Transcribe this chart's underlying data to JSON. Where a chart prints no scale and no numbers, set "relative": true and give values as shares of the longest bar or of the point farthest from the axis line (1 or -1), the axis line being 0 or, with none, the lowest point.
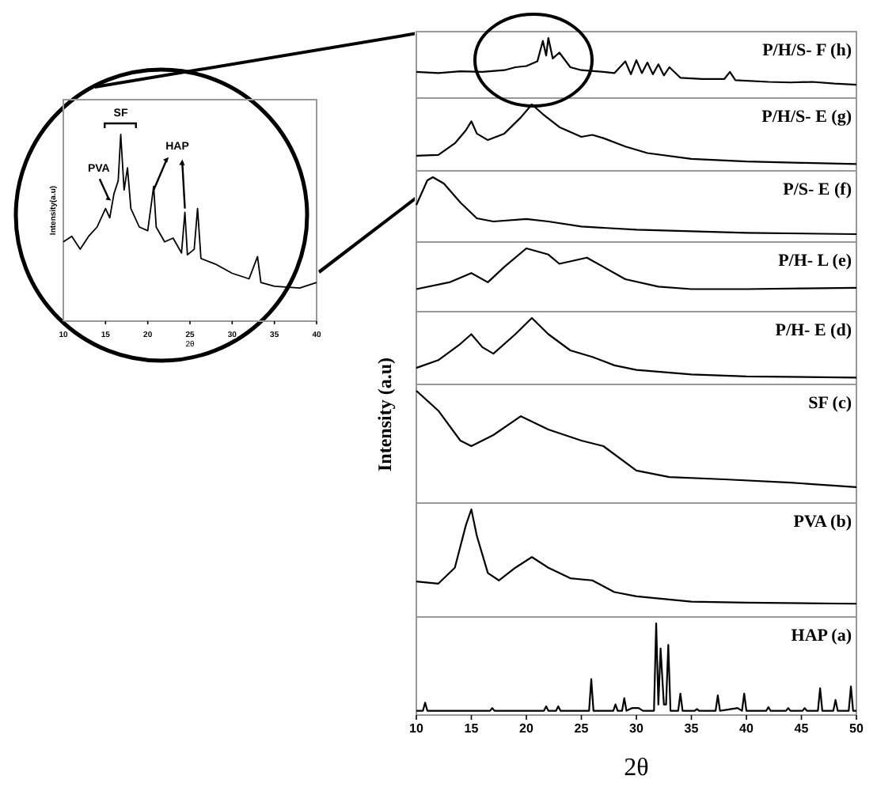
{
  "chart_data": [
    {
      "type": "line",
      "relative": true,
      "xlabel": "2θ",
      "ylabel": "Intensity(a.u)",
      "xlim": [
        10,
        40
      ],
      "xticks": [
        10,
        15,
        20,
        25,
        30,
        35,
        40
      ],
      "tick_labels": "x",
      "annotations": [
        "SF",
        "PVA",
        "HAP"
      ],
      "x": [
        10,
        11,
        12,
        13,
        14,
        15,
        15.5,
        16,
        16.5,
        16.8,
        17.2,
        17.6,
        18,
        19,
        20,
        20.7,
        21,
        22,
        23,
        24,
        24.4,
        24.7,
        25.5,
        25.9,
        26.3,
        28,
        30,
        32,
        33,
        33.4,
        35,
        38,
        40
      ],
      "series": [
        {
          "color": "#000000",
          "values": [
            0.42,
            0.45,
            0.38,
            0.45,
            0.5,
            0.6,
            0.55,
            0.68,
            0.75,
            1.0,
            0.7,
            0.82,
            0.6,
            0.5,
            0.48,
            0.72,
            0.5,
            0.42,
            0.44,
            0.36,
            0.58,
            0.35,
            0.38,
            0.6,
            0.33,
            0.3,
            0.25,
            0.22,
            0.34,
            0.2,
            0.18,
            0.17,
            0.2
          ]
        }
      ]
    },
    {
      "type": "line",
      "relative": true,
      "xlim": [
        10,
        50
      ],
      "tick_labels": false,
      "x": [
        10,
        12,
        14,
        16,
        18,
        19,
        20,
        21,
        21.5,
        21.8,
        22,
        22.4,
        23,
        24,
        25,
        27,
        28,
        29,
        29.5,
        30,
        30.5,
        31,
        31.5,
        32,
        32.5,
        33,
        34,
        36,
        38,
        38.5,
        39,
        42,
        44,
        46,
        48,
        50
      ],
      "series": [
        {
          "name": "P/H/S- F (h)",
          "color": "#000000",
          "values": [
            0.42,
            0.4,
            0.43,
            0.42,
            0.45,
            0.5,
            0.52,
            0.6,
            0.95,
            0.7,
            1.0,
            0.65,
            0.75,
            0.5,
            0.45,
            0.42,
            0.4,
            0.6,
            0.38,
            0.62,
            0.4,
            0.58,
            0.38,
            0.55,
            0.36,
            0.5,
            0.32,
            0.3,
            0.3,
            0.42,
            0.28,
            0.25,
            0.24,
            0.25,
            0.22,
            0.2
          ]
        }
      ]
    },
    {
      "type": "line",
      "relative": true,
      "xlim": [
        10,
        50
      ],
      "tick_labels": false,
      "x": [
        10,
        12,
        13.5,
        14.5,
        15,
        15.5,
        16.5,
        18,
        19.5,
        20.5,
        21.5,
        23,
        25,
        26,
        27,
        29,
        31,
        35,
        40,
        45,
        50
      ],
      "series": [
        {
          "name": "P/H/S- E (g)",
          "color": "#000000",
          "values": [
            0.21,
            0.22,
            0.4,
            0.6,
            0.74,
            0.55,
            0.45,
            0.55,
            0.8,
            1.0,
            0.85,
            0.65,
            0.5,
            0.53,
            0.48,
            0.35,
            0.25,
            0.16,
            0.12,
            0.1,
            0.08
          ]
        }
      ]
    },
    {
      "type": "line",
      "relative": true,
      "xlim": [
        10,
        50
      ],
      "tick_labels": false,
      "x": [
        10,
        11,
        11.5,
        12.5,
        14,
        15.5,
        17,
        20,
        22,
        25,
        30,
        40,
        50
      ],
      "series": [
        {
          "name": "P/S- E (f)",
          "color": "#000000",
          "values": [
            0.56,
            0.95,
            1.0,
            0.9,
            0.6,
            0.35,
            0.3,
            0.34,
            0.3,
            0.22,
            0.17,
            0.12,
            0.1
          ]
        }
      ]
    },
    {
      "type": "line",
      "relative": true,
      "xlim": [
        10,
        50
      ],
      "tick_labels": false,
      "x": [
        10,
        13,
        15,
        16.5,
        18,
        20,
        22,
        23,
        25.5,
        27,
        29,
        32,
        35,
        40,
        45,
        50
      ],
      "series": [
        {
          "name": "P/H- L (e)",
          "color": "#000000",
          "values": [
            0.34,
            0.45,
            0.6,
            0.45,
            0.7,
            1.0,
            0.9,
            0.75,
            0.85,
            0.7,
            0.5,
            0.38,
            0.34,
            0.34,
            0.35,
            0.36
          ]
        }
      ]
    },
    {
      "type": "line",
      "relative": true,
      "xlim": [
        10,
        50
      ],
      "tick_labels": false,
      "ylabel": "Intensity (a.u)",
      "x": [
        10,
        12,
        14,
        15,
        16,
        17,
        19,
        20.5,
        22,
        24,
        26,
        28,
        30,
        35,
        40,
        50
      ],
      "series": [
        {
          "name": "P/H- E (d)",
          "color": "#000000",
          "values": [
            0.23,
            0.35,
            0.6,
            0.75,
            0.55,
            0.45,
            0.75,
            1.0,
            0.75,
            0.5,
            0.4,
            0.27,
            0.2,
            0.13,
            0.1,
            0.08
          ]
        }
      ]
    },
    {
      "type": "line",
      "relative": true,
      "xlim": [
        10,
        50
      ],
      "tick_labels": false,
      "x": [
        10,
        12,
        14,
        15,
        17,
        19.5,
        22,
        25,
        27,
        30,
        33,
        38,
        44,
        50
      ],
      "series": [
        {
          "name": "SF (c)",
          "color": "#000000",
          "values": [
            1.0,
            0.82,
            0.55,
            0.5,
            0.6,
            0.77,
            0.65,
            0.55,
            0.5,
            0.28,
            0.22,
            0.2,
            0.17,
            0.13
          ]
        }
      ]
    },
    {
      "type": "line",
      "relative": true,
      "xlim": [
        10,
        50
      ],
      "tick_labels": false,
      "x": [
        10,
        12,
        13.5,
        14.5,
        15,
        15.5,
        16.5,
        17.5,
        19,
        20.5,
        22,
        24,
        26,
        28,
        30,
        35,
        40,
        50
      ],
      "series": [
        {
          "name": "PVA (b)",
          "color": "#000000",
          "values": [
            0.32,
            0.3,
            0.45,
            0.85,
            1.0,
            0.75,
            0.4,
            0.33,
            0.45,
            0.55,
            0.45,
            0.35,
            0.33,
            0.22,
            0.18,
            0.13,
            0.12,
            0.11
          ]
        }
      ]
    },
    {
      "type": "line",
      "relative": true,
      "xlim": [
        10,
        50
      ],
      "xticks": [
        10,
        15,
        20,
        25,
        30,
        35,
        40,
        45,
        50
      ],
      "tick_labels": "x",
      "xlabel": "2θ",
      "x": [
        10,
        10.6,
        10.8,
        11,
        16.7,
        16.9,
        17.1,
        21.6,
        21.8,
        22,
        22.7,
        22.9,
        23.1,
        25.7,
        25.9,
        26.1,
        27.9,
        28.1,
        28.3,
        28.7,
        28.9,
        29.1,
        29.6,
        30.2,
        30.6,
        31.6,
        31.8,
        32,
        32.2,
        32.5,
        32.7,
        32.9,
        33.1,
        33.8,
        34,
        34.2,
        35.3,
        35.5,
        35.7,
        37.2,
        37.4,
        37.6,
        39.2,
        39.6,
        39.8,
        40,
        41.8,
        42,
        42.2,
        43.6,
        43.8,
        44,
        45.1,
        45.3,
        45.5,
        46.5,
        46.7,
        46.9,
        47.9,
        48.1,
        48.3,
        49.3,
        49.5,
        49.7,
        50
      ],
      "series": [
        {
          "name": "HAP (a)",
          "color": "#000000",
          "values": [
            0.03,
            0.03,
            0.12,
            0.03,
            0.03,
            0.06,
            0.03,
            0.03,
            0.08,
            0.03,
            0.03,
            0.08,
            0.03,
            0.03,
            0.38,
            0.03,
            0.03,
            0.1,
            0.03,
            0.03,
            0.17,
            0.03,
            0.06,
            0.06,
            0.03,
            0.03,
            1.0,
            0.1,
            0.72,
            0.1,
            0.1,
            0.76,
            0.03,
            0.03,
            0.22,
            0.03,
            0.03,
            0.05,
            0.03,
            0.03,
            0.2,
            0.03,
            0.06,
            0.03,
            0.22,
            0.03,
            0.03,
            0.07,
            0.03,
            0.03,
            0.06,
            0.03,
            0.03,
            0.06,
            0.03,
            0.03,
            0.28,
            0.03,
            0.03,
            0.15,
            0.03,
            0.03,
            0.3,
            0.03,
            0.03
          ]
        }
      ]
    }
  ]
}
